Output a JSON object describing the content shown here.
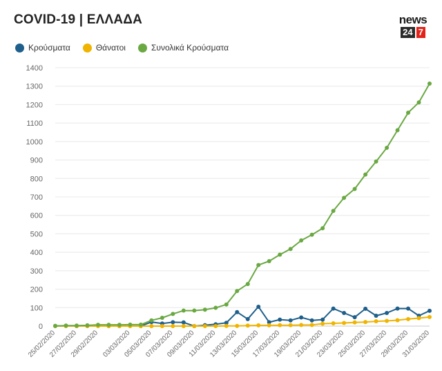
{
  "header": {
    "title": "COVID-19 | ΕΛΛΑΔΑ",
    "logo_word": "news",
    "logo_num1": "24",
    "logo_num2": "7"
  },
  "chart_data": {
    "type": "line",
    "title": "COVID-19 | ΕΛΛΑΔΑ",
    "ylim": [
      0,
      1400
    ],
    "yticks": [
      0,
      100,
      200,
      300,
      400,
      500,
      600,
      700,
      800,
      900,
      1000,
      1100,
      1200,
      1300,
      1400
    ],
    "x": [
      "25/02/2020",
      "26/02/2020",
      "27/02/2020",
      "28/02/2020",
      "29/02/2020",
      "01/03/2020",
      "02/03/2020",
      "03/03/2020",
      "04/03/2020",
      "05/03/2020",
      "06/03/2020",
      "07/03/2020",
      "08/03/2020",
      "09/03/2020",
      "10/03/2020",
      "11/03/2020",
      "12/03/2020",
      "13/03/2020",
      "14/03/2020",
      "15/03/2020",
      "16/03/2020",
      "17/03/2020",
      "18/03/2020",
      "19/03/2020",
      "20/03/2020",
      "21/03/2020",
      "22/03/2020",
      "23/03/2020",
      "24/03/2020",
      "25/03/2020",
      "26/03/2020",
      "27/03/2020",
      "28/03/2020",
      "29/03/2020",
      "30/03/2020",
      "31/03/2020"
    ],
    "xtick_labels": [
      "25/02/2020",
      "27/02/2020",
      "29/02/2020",
      "03/03/2020",
      "05/03/2020",
      "07/03/2020",
      "09/03/2020",
      "11/03/2020",
      "13/03/2020",
      "15/03/2020",
      "17/03/2020",
      "19/03/2020",
      "21/03/2020",
      "23/03/2020",
      "25/03/2020",
      "27/03/2020",
      "29/03/2020",
      "31/03/2020"
    ],
    "series": [
      {
        "name": "Κρούσματα",
        "color": "#1f5f8b",
        "values": [
          1,
          2,
          0,
          1,
          3,
          0,
          0,
          1,
          0,
          22,
          14,
          21,
          20,
          0,
          5,
          10,
          18,
          76,
          38,
          105,
          21,
          35,
          31,
          47,
          31,
          35,
          95,
          71,
          48,
          94,
          56,
          71,
          95,
          95,
          56,
          83
        ]
      },
      {
        "name": "Θάνατοι",
        "color": "#f0b400",
        "values": [
          0,
          0,
          0,
          0,
          0,
          0,
          0,
          0,
          0,
          0,
          0,
          0,
          0,
          0,
          0,
          0,
          1,
          1,
          3,
          4,
          4,
          5,
          5,
          6,
          6,
          13,
          15,
          17,
          20,
          22,
          26,
          28,
          32,
          38,
          43,
          49
        ]
      },
      {
        "name": "Συνολικά Κρούσματα",
        "color": "#6aa842",
        "values": [
          1,
          3,
          3,
          4,
          7,
          7,
          7,
          8,
          8,
          31,
          45,
          66,
          84,
          84,
          89,
          99,
          117,
          190,
          228,
          331,
          352,
          387,
          418,
          464,
          495,
          530,
          624,
          695,
          743,
          821,
          892,
          966,
          1061,
          1156,
          1212,
          1314
        ]
      }
    ]
  }
}
